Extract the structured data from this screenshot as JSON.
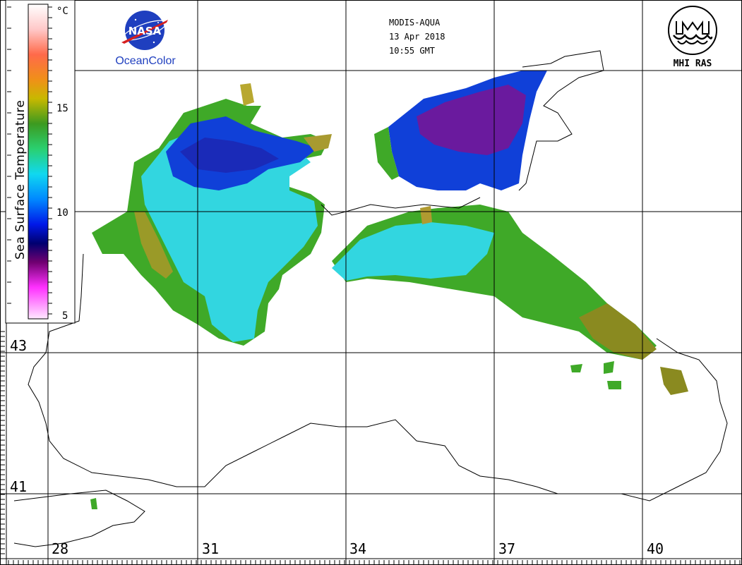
{
  "product": {
    "sensor": "MODIS-AQUA",
    "date": "13 Apr 2018",
    "time": "10:55 GMT"
  },
  "logos": {
    "nasa_text": "NASA",
    "oceancolor_text": "OceanColor",
    "mhi_text": "MHI RAS"
  },
  "colorbar": {
    "title": "Sea Surface Temperature",
    "unit": "°C",
    "ticks": [
      "15",
      "10",
      "5"
    ],
    "colors": [
      "#ffffff",
      "#ff7f5f",
      "#f4a020",
      "#c8c000",
      "#44aa22",
      "#22ddaa",
      "#00c4ff",
      "#0044ff",
      "#000088",
      "#800080",
      "#ff33ff",
      "#ffe0f8"
    ]
  },
  "axes": {
    "longitude_labels": [
      "28",
      "31",
      "34",
      "37",
      "40"
    ],
    "latitude_labels": [
      "43",
      "41"
    ]
  },
  "colors": {
    "warm": "#8a8a20",
    "green": "#3fa928",
    "cyan": "#32d6e0",
    "blue": "#1040d8",
    "deep": "#1a1aa8",
    "purple": "#6a1a9e"
  }
}
